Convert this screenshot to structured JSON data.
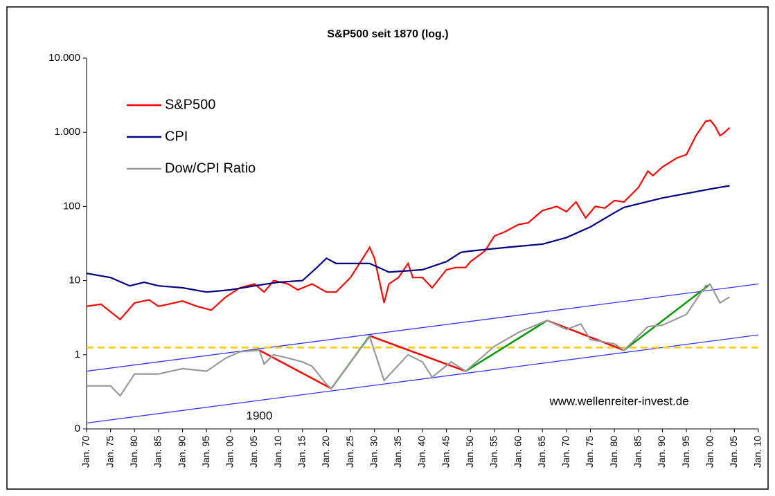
{
  "chart_data": {
    "type": "line",
    "title": "S&P500 seit 1870 (log.)",
    "log_y": true,
    "legend": "top-left",
    "xlim": [
      1870,
      2010
    ],
    "xticks": [
      {
        "value": 1870,
        "label": "Jan. 70"
      },
      {
        "value": 1875,
        "label": "Jan. 75"
      },
      {
        "value": 1880,
        "label": "Jan. 80"
      },
      {
        "value": 1885,
        "label": "Jan. 85"
      },
      {
        "value": 1890,
        "label": "Jan. 90"
      },
      {
        "value": 1895,
        "label": "Jan. 95"
      },
      {
        "value": 1900,
        "label": "Jan. 00"
      },
      {
        "value": 1905,
        "label": "Jan. 05"
      },
      {
        "value": 1910,
        "label": "Jan. 10"
      },
      {
        "value": 1915,
        "label": "Jan. 15"
      },
      {
        "value": 1920,
        "label": "Jan. 20"
      },
      {
        "value": 1925,
        "label": "Jan. 25"
      },
      {
        "value": 1930,
        "label": "Jan. 30"
      },
      {
        "value": 1935,
        "label": "Jan. 35"
      },
      {
        "value": 1940,
        "label": "Jan. 40"
      },
      {
        "value": 1945,
        "label": "Jan. 45"
      },
      {
        "value": 1950,
        "label": "Jan. 50"
      },
      {
        "value": 1955,
        "label": "Jan. 55"
      },
      {
        "value": 1960,
        "label": "Jan. 60"
      },
      {
        "value": 1965,
        "label": "Jan. 65"
      },
      {
        "value": 1970,
        "label": "Jan. 70"
      },
      {
        "value": 1975,
        "label": "Jan. 75"
      },
      {
        "value": 1980,
        "label": "Jan. 80"
      },
      {
        "value": 1985,
        "label": "Jan. 85"
      },
      {
        "value": 1990,
        "label": "Jan. 90"
      },
      {
        "value": 1995,
        "label": "Jan. 95"
      },
      {
        "value": 2000,
        "label": "Jan. 00"
      },
      {
        "value": 2005,
        "label": "Jan. 05"
      },
      {
        "value": 2010,
        "label": "Jan. 10"
      }
    ],
    "ylim": [
      0.1,
      10000
    ],
    "yticks": [
      {
        "value": 0.1,
        "label": "0"
      },
      1,
      10,
      100,
      {
        "value": 1000,
        "label": "1.000"
      },
      {
        "value": 10000,
        "label": "10.000"
      }
    ],
    "series": [
      {
        "name": "S&P500",
        "color": "#ff0000",
        "x": [
          1870,
          1873,
          1877,
          1880,
          1883,
          1885,
          1890,
          1893,
          1896,
          1899,
          1902,
          1905,
          1907,
          1909,
          1912,
          1914,
          1917,
          1920,
          1922,
          1925,
          1929,
          1930,
          1932,
          1933,
          1935,
          1937,
          1938,
          1940,
          1942,
          1945,
          1947,
          1949,
          1950,
          1953,
          1955,
          1957,
          1960,
          1962,
          1965,
          1968,
          1970,
          1972,
          1974,
          1976,
          1978,
          1980,
          1982,
          1985,
          1987,
          1988,
          1990,
          1993,
          1995,
          1997,
          1999,
          2000,
          2001,
          2002,
          2003,
          2004
        ],
        "values": [
          4.5,
          4.8,
          3.0,
          5,
          5.5,
          4.5,
          5.3,
          4.5,
          4.0,
          6,
          8,
          9,
          7,
          10,
          9,
          7.5,
          9,
          7,
          7,
          11,
          28,
          20,
          5,
          9,
          11,
          17,
          11,
          11,
          8,
          14,
          15,
          15,
          18,
          25,
          40,
          45,
          57,
          60,
          88,
          100,
          85,
          115,
          70,
          100,
          95,
          120,
          115,
          180,
          300,
          260,
          340,
          450,
          500,
          900,
          1400,
          1450,
          1200,
          900,
          1000,
          1150
        ]
      },
      {
        "name": "CPI",
        "color": "#000080",
        "x": [
          1870,
          1875,
          1879,
          1882,
          1885,
          1890,
          1895,
          1900,
          1905,
          1910,
          1915,
          1918,
          1920,
          1922,
          1929,
          1933,
          1940,
          1945,
          1948,
          1950,
          1955,
          1960,
          1965,
          1970,
          1975,
          1980,
          1982,
          1990,
          2000,
          2004
        ],
        "values": [
          12.5,
          11,
          8.5,
          9.5,
          8.5,
          8,
          7,
          7.5,
          8.5,
          9.5,
          10,
          15,
          20,
          17,
          17,
          13,
          14,
          18,
          24,
          25,
          27,
          29,
          31,
          38,
          53,
          82,
          97,
          130,
          172,
          190
        ]
      },
      {
        "name": "Dow/CPI Ratio",
        "color": "#999999",
        "x": [
          1870,
          1875,
          1877,
          1880,
          1885,
          1890,
          1895,
          1899,
          1902,
          1906,
          1907,
          1909,
          1912,
          1915,
          1917,
          1920,
          1921,
          1925,
          1929,
          1932,
          1937,
          1940,
          1942,
          1946,
          1949,
          1955,
          1960,
          1966,
          1970,
          1973,
          1975,
          1980,
          1982,
          1987,
          1990,
          1995,
          1999,
          2000,
          2002,
          2003,
          2004
        ],
        "values": [
          0.38,
          0.38,
          0.28,
          0.55,
          0.55,
          0.65,
          0.6,
          0.9,
          1.1,
          1.15,
          0.75,
          1.0,
          0.9,
          0.8,
          0.7,
          0.4,
          0.35,
          0.8,
          1.75,
          0.45,
          1.0,
          0.8,
          0.5,
          0.8,
          0.6,
          1.3,
          2.0,
          2.9,
          2.2,
          2.6,
          1.6,
          1.4,
          1.15,
          2.4,
          2.5,
          3.5,
          8.5,
          8.8,
          5,
          5.5,
          6
        ]
      }
    ],
    "annotation_lines": [
      {
        "color": "#3333ff",
        "x": [
          1870,
          2010
        ],
        "y": [
          0.6,
          9
        ]
      },
      {
        "color": "#3333ff",
        "x": [
          1870,
          2010
        ],
        "y": [
          0.12,
          1.85
        ]
      },
      {
        "color": "#ffcc00",
        "dashed": true,
        "x": [
          1870,
          2010
        ],
        "y": [
          1.25,
          1.25
        ]
      },
      {
        "color": "#ff0000",
        "x": [
          1906,
          1921
        ],
        "y": [
          1.15,
          0.35
        ]
      },
      {
        "color": "#ff0000",
        "x": [
          1929,
          1949
        ],
        "y": [
          1.8,
          0.6
        ]
      },
      {
        "color": "#ff0000",
        "x": [
          1966,
          1982
        ],
        "y": [
          2.9,
          1.15
        ]
      },
      {
        "color": "#009900",
        "x": [
          1921,
          1929
        ],
        "y": [
          0.35,
          1.8
        ]
      },
      {
        "color": "#009900",
        "x": [
          1949,
          1966
        ],
        "y": [
          0.6,
          2.9
        ]
      },
      {
        "color": "#009900",
        "x": [
          1982,
          2000
        ],
        "y": [
          1.15,
          9
        ]
      }
    ],
    "annotations": [
      {
        "text": "1900",
        "x": 1906,
        "y": 0.147
      },
      {
        "text": "www.wellenreiter-invest.de",
        "x": 1981,
        "y": 0.23
      }
    ]
  }
}
